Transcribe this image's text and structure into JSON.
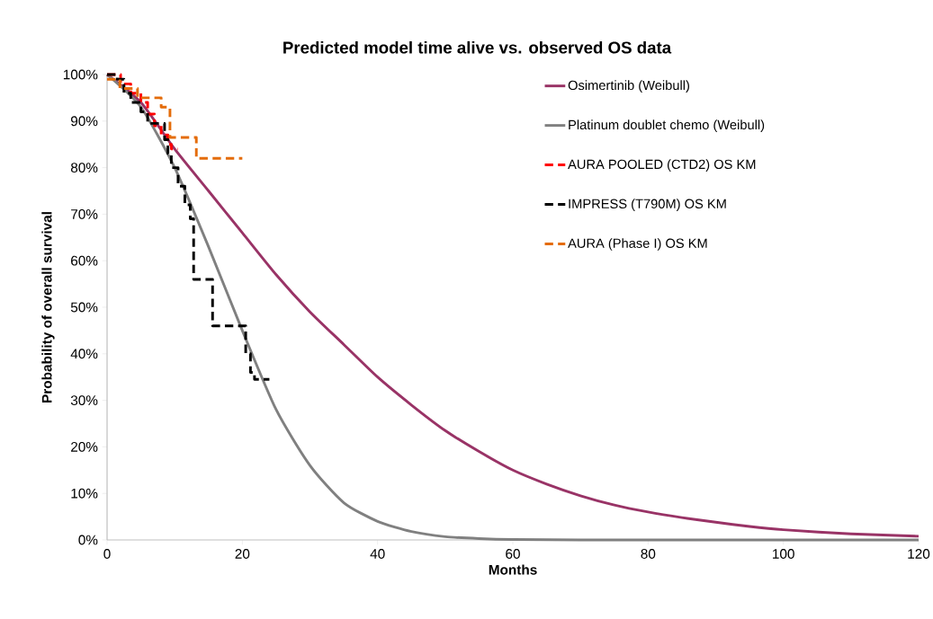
{
  "chart_data": {
    "type": "line",
    "title": "Predicted model time alive vs. observed OS data",
    "xlabel": "Months",
    "ylabel": "Probability of overall survival",
    "xlim": [
      0,
      120
    ],
    "xticks": [
      0,
      20,
      40,
      60,
      80,
      100,
      120
    ],
    "ylim": [
      0,
      100
    ],
    "yticks": [
      {
        "value": 0,
        "label": "0%"
      },
      {
        "value": 10,
        "label": "10%"
      },
      {
        "value": 20,
        "label": "20%"
      },
      {
        "value": 30,
        "label": "30%"
      },
      {
        "value": 40,
        "label": "40%"
      },
      {
        "value": 50,
        "label": "50%"
      },
      {
        "value": 60,
        "label": "60%"
      },
      {
        "value": 70,
        "label": "70%"
      },
      {
        "value": 80,
        "label": "80%"
      },
      {
        "value": 90,
        "label": "90%"
      },
      {
        "value": 100,
        "label": "100%"
      }
    ],
    "legend": "top right",
    "grid": false,
    "series": [
      {
        "name": "Osimertinib (Weibull)",
        "color": "#993366",
        "line_style": "solid",
        "x": [
          0,
          5,
          10,
          15,
          20,
          25,
          30,
          35,
          40,
          45,
          50,
          55,
          60,
          65,
          70,
          75,
          80,
          85,
          90,
          95,
          100,
          110,
          120
        ],
        "values": [
          100,
          94,
          84,
          75,
          66,
          57,
          49,
          42,
          35,
          29,
          23.5,
          19,
          15,
          12,
          9.5,
          7.5,
          6,
          4.8,
          3.8,
          2.9,
          2.2,
          1.3,
          0.8
        ]
      },
      {
        "name": "Platinum doublet chemo (Weibull)",
        "color": "#808080",
        "line_style": "solid",
        "x": [
          0,
          5,
          10,
          15,
          20,
          25,
          30,
          35,
          40,
          45,
          50,
          55,
          60,
          70,
          80,
          100,
          120
        ],
        "values": [
          100,
          93,
          80,
          63,
          45,
          28,
          16,
          8,
          4,
          1.8,
          0.7,
          0.3,
          0.1,
          0,
          0,
          0,
          0
        ]
      },
      {
        "name": "AURA POOLED (CTD2) OS KM",
        "color": "#ff0000",
        "type": "step",
        "line_style": "dashed",
        "x": [
          0,
          2,
          3.5,
          5,
          6,
          7,
          8,
          9,
          9.5,
          10.5
        ],
        "values": [
          100,
          98,
          96,
          94,
          91.5,
          89,
          87,
          85,
          84,
          84
        ]
      },
      {
        "name": "IMPRESS (T790M) OS KM",
        "color": "#000000",
        "type": "step",
        "line_style": "dashed",
        "x": [
          0,
          1.5,
          2.5,
          3.5,
          5,
          6,
          8.5,
          9,
          9.5,
          10.5,
          11.5,
          12.3,
          12.8,
          15.6,
          20.5,
          21.2,
          21.8,
          24
        ],
        "values": [
          100,
          99,
          96,
          94,
          92,
          89.5,
          86,
          83,
          80,
          76,
          72,
          69,
          56,
          46,
          40,
          36,
          34.5,
          34.5
        ]
      },
      {
        "name": "AURA (Phase I) OS KM",
        "color": "#e46c0a",
        "type": "step",
        "line_style": "dashed",
        "x": [
          0,
          1.9,
          4.5,
          8,
          9.3,
          13.2,
          20
        ],
        "values": [
          99,
          97,
          95,
          93,
          86.5,
          82,
          82
        ]
      }
    ]
  }
}
